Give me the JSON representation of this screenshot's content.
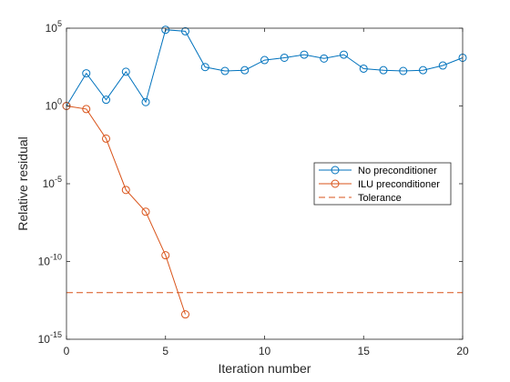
{
  "chart_data": {
    "type": "line",
    "xlabel": "Iteration number",
    "ylabel": "Relative residual",
    "xlim": [
      0,
      20
    ],
    "ylim_log10": [
      -15,
      5
    ],
    "yscale": "log",
    "grid": false,
    "legend_position": "right-middle",
    "x_ticks": [
      {
        "value": 0,
        "label": "0"
      },
      {
        "value": 5,
        "label": "5"
      },
      {
        "value": 10,
        "label": "10"
      },
      {
        "value": 15,
        "label": "15"
      },
      {
        "value": 20,
        "label": "20"
      }
    ],
    "y_ticks": [
      {
        "exp": 5,
        "base": "10",
        "sup": "5"
      },
      {
        "exp": 0,
        "base": "10",
        "sup": "0"
      },
      {
        "exp": -5,
        "base": "10",
        "sup": "-5"
      },
      {
        "exp": -10,
        "base": "10",
        "sup": "-10"
      },
      {
        "exp": -15,
        "base": "10",
        "sup": "-15"
      }
    ],
    "series": [
      {
        "name": "No preconditioner",
        "color": "#0072BD",
        "marker": "circle",
        "x": [
          0,
          1,
          2,
          3,
          4,
          5,
          6,
          7,
          8,
          9,
          10,
          11,
          12,
          13,
          14,
          15,
          16,
          17,
          18,
          19,
          20
        ],
        "log10_y": [
          0,
          2.1,
          0.4,
          2.2,
          0.25,
          4.9,
          4.8,
          2.5,
          2.25,
          2.3,
          2.95,
          3.1,
          3.3,
          3.05,
          3.3,
          2.4,
          2.3,
          2.25,
          2.3,
          2.6,
          3.1
        ]
      },
      {
        "name": "ILU preconditioner",
        "color": "#D95319",
        "marker": "circle",
        "x": [
          0,
          1,
          2,
          3,
          4,
          5,
          6
        ],
        "log10_y": [
          0,
          -0.2,
          -2.1,
          -5.4,
          -6.8,
          -9.6,
          -13.4
        ]
      },
      {
        "name": "Tolerance",
        "color": "#D95319",
        "style": "dashed",
        "log10_y_const": -12
      }
    ]
  }
}
